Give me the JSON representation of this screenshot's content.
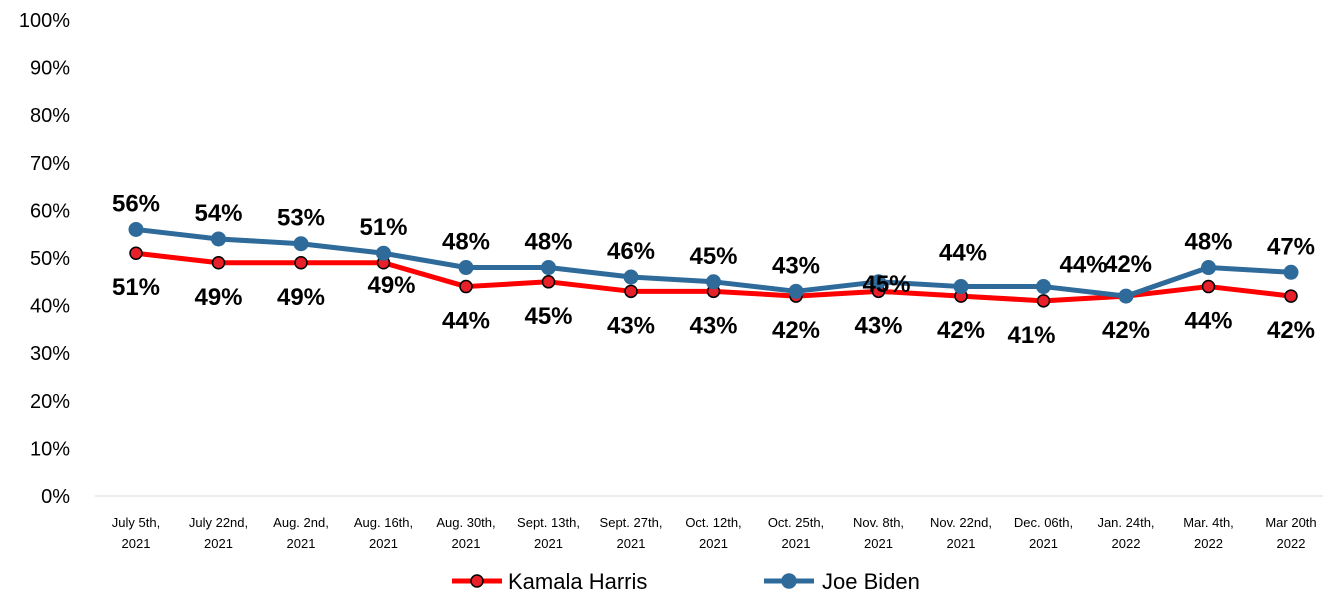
{
  "chart_data": {
    "type": "line",
    "categories": [
      [
        "July 5th,",
        "2021"
      ],
      [
        "July 22nd,",
        "2021"
      ],
      [
        "Aug. 2nd,",
        "2021"
      ],
      [
        "Aug. 16th,",
        "2021"
      ],
      [
        "Aug. 30th,",
        "2021"
      ],
      [
        "Sept. 13th,",
        "2021"
      ],
      [
        "Sept. 27th,",
        "2021"
      ],
      [
        "Oct. 12th,",
        "2021"
      ],
      [
        "Oct. 25th,",
        "2021"
      ],
      [
        "Nov. 8th,",
        "2021"
      ],
      [
        "Nov. 22nd,",
        "2021"
      ],
      [
        "Dec. 06th,",
        "2021"
      ],
      [
        "Jan. 24th,",
        "2022"
      ],
      [
        "Mar. 4th,",
        "2022"
      ],
      [
        "Mar 20th",
        "2022"
      ]
    ],
    "series": [
      {
        "name": "Kamala Harris",
        "color": "#ff0000",
        "marker_fill": "#e8202a",
        "values": [
          51,
          49,
          49,
          49,
          44,
          45,
          43,
          43,
          42,
          43,
          42,
          41,
          42,
          44,
          42
        ],
        "labels": [
          "51%",
          "49%",
          "49%",
          "49%",
          "44%",
          "45%",
          "43%",
          "43%",
          "42%",
          "43%",
          "42%",
          "41%",
          "42%",
          "44%",
          "42%"
        ]
      },
      {
        "name": "Joe Biden",
        "color": "#2e6b9a",
        "marker_fill": "#2e6b9a",
        "values": [
          56,
          54,
          53,
          51,
          48,
          48,
          46,
          45,
          43,
          45,
          44,
          44,
          42,
          48,
          47
        ],
        "labels": [
          "56%",
          "54%",
          "53%",
          "51%",
          "48%",
          "48%",
          "46%",
          "45%",
          "43%",
          "45%",
          "44%",
          "44%",
          "42%",
          "48%",
          "47%"
        ]
      }
    ],
    "y_ticks": [
      "0%",
      "10%",
      "20%",
      "30%",
      "40%",
      "50%",
      "60%",
      "70%",
      "80%",
      "90%",
      "100%"
    ],
    "ylim": [
      0,
      100
    ],
    "grid": false,
    "legend_position": "bottom"
  }
}
